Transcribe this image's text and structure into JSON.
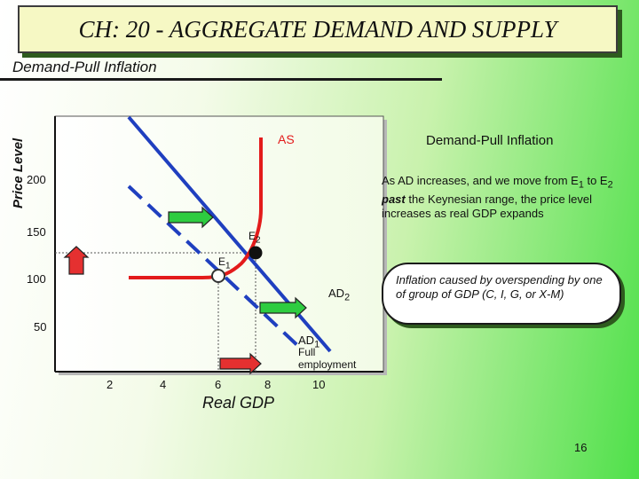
{
  "header": {
    "title": "CH: 20 - AGGREGATE DEMAND AND SUPPLY",
    "subtitle": "Demand-Pull Inflation"
  },
  "diagram": {
    "y_axis_label": "Price Level",
    "x_axis_label": "Real GDP",
    "y_ticks": [
      "200",
      "150",
      "100",
      "50"
    ],
    "x_ticks": [
      "2",
      "4",
      "6",
      "8",
      "10"
    ],
    "curve_as_label": "AS",
    "point_e1_label": "E",
    "point_e1_sub": "1",
    "point_e2_label": "E",
    "point_e2_sub": "2",
    "curve_ad2_label": "AD",
    "curve_ad2_sub": "2",
    "curve_ad1_label": "AD",
    "curve_ad1_sub": "1",
    "full_employment_label_1": "Full",
    "full_employment_label_2": "employment",
    "colors": {
      "as_curve": "#e31b1b",
      "ad_curves": "#1f3fbf",
      "arrow_fill": "#2ecc40",
      "arrow_red": "#e53030"
    }
  },
  "side_panel": {
    "title": "Demand-Pull Inflation",
    "text_a": "As AD increases, and we move from E",
    "sub_a": "1",
    "text_b": " to E",
    "sub_b": "2",
    "text_bold": "past",
    "text_c": " the Keynesian range, the price level increases as real GDP expands"
  },
  "note_box": {
    "text": "Inflation caused by overspending by one of group of GDP (C, I, G, or X-M)"
  },
  "page_number": "16"
}
